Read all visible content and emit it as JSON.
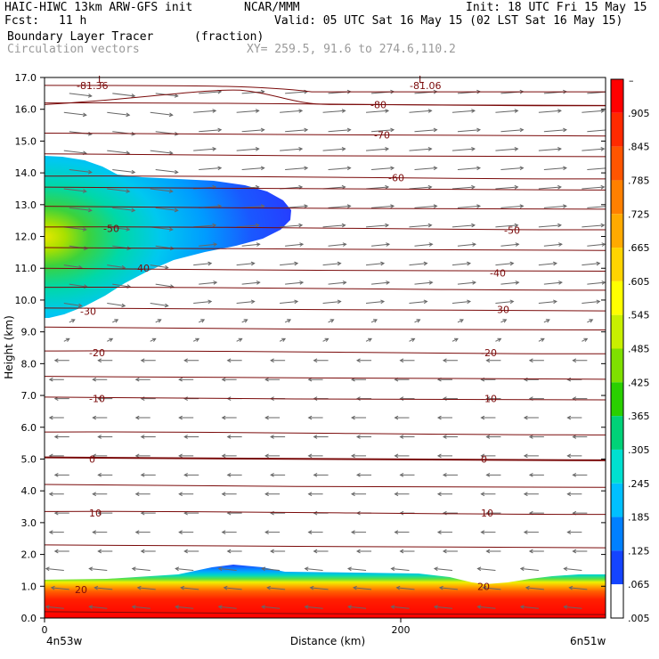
{
  "header": {
    "model": "HAIC-HIWC 13km ARW-GFS init",
    "org": "NCAR/MMM",
    "init": "Init: 18 UTC Fri 15 May 15",
    "fcst_label": "Fcst:",
    "fcst_value": "11 h",
    "valid": "Valid: 05 UTC Sat 16 May 15 (02 LST Sat 16 May 15)",
    "field": "Boundary Layer Tracer",
    "field_units": "(fraction)",
    "overlay": "Circulation vectors",
    "xy": "XY= 259.5, 91.6 to 274.6,110.2"
  },
  "chart_data": {
    "type": "heatmap",
    "title": "Boundary Layer Tracer",
    "units": "(fraction)",
    "ylabel": "Height (km)",
    "xlabel": "Distance (km)",
    "ylim": [
      0,
      17
    ],
    "xlim": [
      0,
      315
    ],
    "y_ticks": [
      "0.0",
      "1.0",
      "2.0",
      "3.0",
      "4.0",
      "5.0",
      "6.0",
      "7.0",
      "8.0",
      "9.0",
      "10.0",
      "11.0",
      "12.0",
      "13.0",
      "14.0",
      "15.0",
      "16.0",
      "17.0"
    ],
    "x_ticks": [
      {
        "value": 0,
        "label": "0"
      },
      {
        "value": 200,
        "label": "200"
      }
    ],
    "x_endpoint_labels": [
      "4n53w",
      "6n51w"
    ],
    "colorbar": {
      "labels": [
        "",
        ".905",
        ".845",
        ".785",
        ".725",
        ".665",
        ".605",
        ".545",
        ".485",
        ".425",
        ".365",
        ".305",
        ".245",
        ".185",
        ".125",
        ".065",
        ".005"
      ],
      "top_label": "–",
      "colors": [
        "#ff0000",
        "#ff2a00",
        "#ff5500",
        "#ff8000",
        "#ffaa00",
        "#ffd400",
        "#ffff00",
        "#c8f000",
        "#7fe000",
        "#2ad000",
        "#00d278",
        "#00e0d0",
        "#00c0ff",
        "#0080ff",
        "#1444ff",
        "#ffffff"
      ]
    },
    "isotherms": [
      {
        "label": "-81.36",
        "y": 16.75,
        "x": 18
      },
      {
        "label": "-81.06",
        "y": 16.75,
        "x": 205
      },
      {
        "label": "-80",
        "y": 16.15,
        "x": 183
      },
      {
        "label": "-70",
        "y": 15.2,
        "x": 185
      },
      {
        "label": "-60",
        "y": 13.85,
        "x": 193
      },
      {
        "label": "-50",
        "y": 12.25,
        "x": 33
      },
      {
        "label": "-50",
        "y": 12.2,
        "x": 258
      },
      {
        "label": "-40",
        "y": 11.0,
        "x": 50
      },
      {
        "label": "-40",
        "y": 10.85,
        "x": 250
      },
      {
        "label": "-30",
        "y": 9.65,
        "x": 20
      },
      {
        "label": "-30",
        "y": 9.7,
        "x": 252
      },
      {
        "label": "-20",
        "y": 8.35,
        "x": 25
      },
      {
        "label": "-20",
        "y": 8.35,
        "x": 245
      },
      {
        "label": "-10",
        "y": 6.9,
        "x": 25
      },
      {
        "label": "-10",
        "y": 6.9,
        "x": 245
      },
      {
        "label": "0",
        "y": 5.0,
        "x": 25
      },
      {
        "label": "0",
        "y": 5.0,
        "x": 245
      },
      {
        "label": "10",
        "y": 3.3,
        "x": 25
      },
      {
        "label": "10",
        "y": 3.3,
        "x": 245
      },
      {
        "label": "20",
        "y": 0.9,
        "x": 17
      },
      {
        "label": "20",
        "y": 1.0,
        "x": 243
      }
    ],
    "low_markers": [
      {
        "label": "L",
        "x": 30,
        "y": 16.95
      },
      {
        "label": "L",
        "x": 210,
        "y": 16.95
      }
    ],
    "upper_plume": {
      "max_fraction": 0.53,
      "top_km": 14.5,
      "bottom_km": 9.6,
      "core_km": 13.2,
      "tip_x": 140
    },
    "surface_layer": {
      "mean_top_km": 1.3,
      "max_fraction": 1.0
    }
  }
}
